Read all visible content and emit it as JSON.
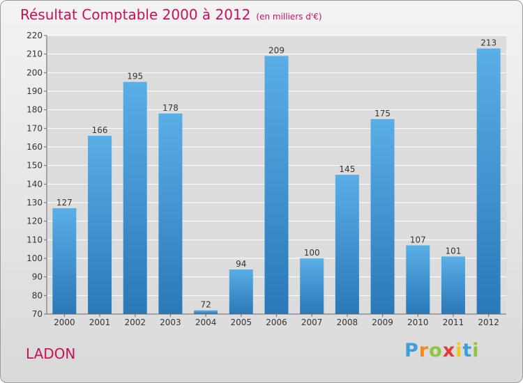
{
  "page": {
    "title": "Résultat Comptable 2000 à 2012",
    "subtitle": "(en milliers d'€)",
    "commune": "LADON",
    "logo": "Proxiti",
    "logo_colors": [
      "#3ea0d8",
      "#f08a1c",
      "#8cc63e",
      "#e23b3b",
      "#f5c518",
      "#3ea0d8",
      "#8cc63e"
    ]
  },
  "colors": {
    "title": "#c8105a",
    "bar_top": "#5aaee6",
    "bar_bottom": "#2a78b8",
    "grid": "#ffffff",
    "axis_text": "#333333"
  },
  "chart_data": {
    "type": "bar",
    "title": "Résultat Comptable 2000 à 2012",
    "subtitle": "(en milliers d'€)",
    "categories": [
      "2000",
      "2001",
      "2002",
      "2003",
      "2004",
      "2005",
      "2006",
      "2007",
      "2008",
      "2009",
      "2010",
      "2011",
      "2012"
    ],
    "values": [
      127,
      166,
      195,
      178,
      72,
      94,
      209,
      100,
      145,
      175,
      107,
      101,
      213
    ],
    "ylim": [
      70,
      220
    ],
    "yticks": [
      70,
      80,
      90,
      100,
      110,
      120,
      130,
      140,
      150,
      160,
      170,
      180,
      190,
      200,
      210,
      220
    ],
    "grid": true,
    "xlabel": "",
    "ylabel": ""
  }
}
